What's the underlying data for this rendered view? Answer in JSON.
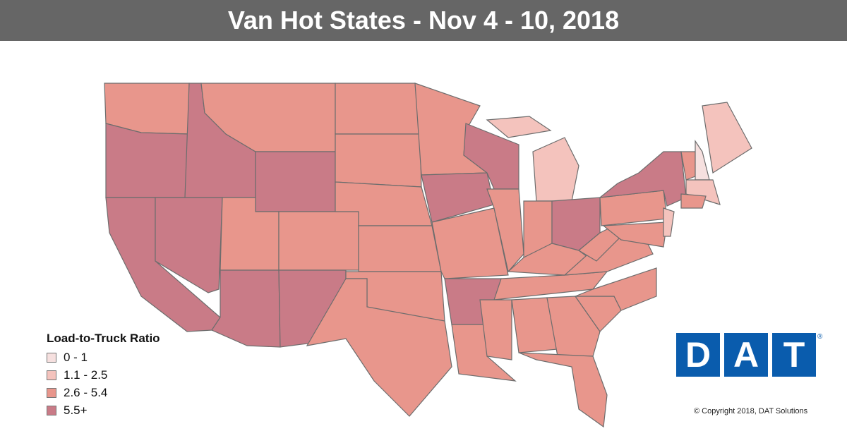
{
  "header": {
    "title": "Van Hot States - Nov 4 - 10, 2018"
  },
  "legend": {
    "title": "Load-to-Truck Ratio",
    "items": [
      {
        "label": "0 - 1",
        "color": "#f6e0df"
      },
      {
        "label": "1.1 - 2.5",
        "color": "#f4c3bd"
      },
      {
        "label": "2.6 - 5.4",
        "color": "#e8968c"
      },
      {
        "label": "5.5+",
        "color": "#c97b87"
      }
    ]
  },
  "logo": {
    "letters": [
      "D",
      "A",
      "T"
    ],
    "mark": "®"
  },
  "footer": {
    "copyright": "© Copyright 2018, DAT Solutions"
  }
}
